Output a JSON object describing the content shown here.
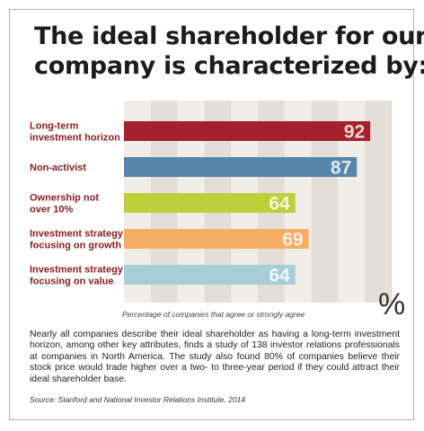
{
  "title": {
    "line1": "The ideal shareholder for our",
    "line2": "company is characterized by:"
  },
  "chart_data": {
    "type": "bar",
    "orientation": "horizontal",
    "title": "The ideal shareholder for our company is characterized by:",
    "categories": [
      [
        "Long-term",
        "investment horizon"
      ],
      [
        "Non-activist"
      ],
      [
        "Ownership not",
        "over 10%"
      ],
      [
        "Investment strategy",
        "focusing on growth"
      ],
      [
        "Investment strategy",
        "focusing on value"
      ]
    ],
    "values": [
      92,
      87,
      64,
      69,
      64
    ],
    "value_labels": [
      "92",
      "87",
      "64",
      "69",
      "64"
    ],
    "bar_colors": [
      "#a5212b",
      "#5786aa",
      "#bfcf3a",
      "#f6ad66",
      "#a7ced8"
    ],
    "xlim": [
      0,
      100
    ],
    "xlabel": "Percentage of companies that agree or strongly agree",
    "unit": "%",
    "grid": "vertical alternating bands",
    "band_colors": [
      "#f1eeea",
      "#e3ded8"
    ],
    "legend": "none"
  },
  "caption": "Percentage of companies that agree or strongly agree",
  "unit_symbol": "%",
  "body_text": "Nearly all companies describe their ideal shareholder as having a long-term investment horizon, among other key attributes, finds a study of 138 investor relations professionals at companies in North America. The study also found 80% of companies believe their stock price would trade higher over a two- to three-year period if they could attract their ideal shareholder base.",
  "source": "Source: Stanford and National Investor Relations Institute, 2014",
  "colors": {
    "label_text": "#8a1f24",
    "title_text": "#1c1c1c",
    "frame_border": "#b5b1ac"
  }
}
